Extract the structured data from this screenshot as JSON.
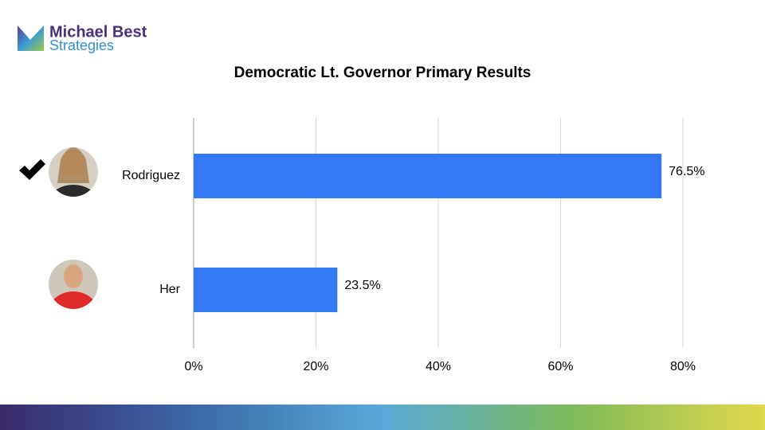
{
  "logo": {
    "line1": "Michael Best",
    "line2": "Strategies"
  },
  "chart_data": {
    "type": "hbar",
    "title": "Democratic Lt. Governor Primary Results",
    "categories": [
      "Rodriguez",
      "Her"
    ],
    "values": [
      76.5,
      23.5
    ],
    "value_labels": [
      "76.5%",
      "23.5%"
    ],
    "color": "#3478f6",
    "xlim": [
      0,
      80
    ],
    "xticks": [
      {
        "value": 0,
        "label": "0%"
      },
      {
        "value": 20,
        "label": "20%"
      },
      {
        "value": 40,
        "label": "40%"
      },
      {
        "value": 60,
        "label": "60%"
      },
      {
        "value": 80,
        "label": "80%"
      }
    ],
    "grid": true
  }
}
